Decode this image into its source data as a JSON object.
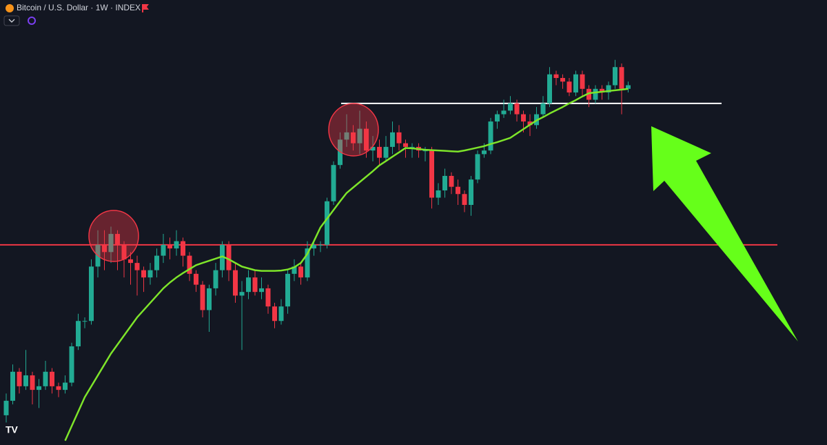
{
  "chart_data": {
    "type": "candlestick",
    "title": "Bitcoin / U.S. Dollar · 1W · INDEX",
    "up_color": "#22ab94",
    "down_color": "#f23645",
    "ylim": [
      13800,
      136500
    ],
    "open": [
      22000,
      26000,
      34000,
      30000,
      33000,
      29000,
      30000,
      34000,
      30000,
      29000,
      31000,
      41000,
      48000,
      48000,
      63000,
      69000,
      67000,
      72000,
      69000,
      65000,
      64000,
      62000,
      60000,
      62000,
      66000,
      69000,
      68000,
      70000,
      66000,
      61000,
      58000,
      51000,
      57000,
      62000,
      69000,
      62000,
      55000,
      56000,
      60000,
      56000,
      57000,
      52000,
      48000,
      52000,
      61000,
      63000,
      60000,
      68000,
      69000,
      69000,
      81000,
      91000,
      98000,
      100000,
      97000,
      101000,
      95000,
      96000,
      93000,
      96000,
      100000,
      97000,
      96000,
      96000,
      95000,
      95000,
      82000,
      84000,
      88000,
      85000,
      83000,
      80000,
      87000,
      94000,
      95000,
      103000,
      105000,
      106000,
      108000,
      105000,
      103000,
      102000,
      105000,
      108000,
      116000,
      115000,
      114000,
      111000,
      116000,
      112000,
      109000,
      112000,
      111000,
      113000,
      118000,
      112000
    ],
    "high": [
      28000,
      36000,
      35000,
      40000,
      34000,
      32000,
      37000,
      35000,
      31000,
      33000,
      42000,
      50000,
      49000,
      65000,
      73000,
      73000,
      74000,
      73000,
      70000,
      67000,
      66000,
      63000,
      64000,
      68000,
      72000,
      71000,
      73000,
      71000,
      67000,
      62000,
      59000,
      58000,
      64000,
      70000,
      70000,
      64000,
      59000,
      62000,
      62000,
      60000,
      58000,
      53000,
      54000,
      62000,
      65000,
      64000,
      70000,
      70000,
      70000,
      82000,
      92000,
      100000,
      105000,
      102000,
      106000,
      103000,
      99000,
      98000,
      99000,
      103000,
      102000,
      98000,
      97000,
      97000,
      96000,
      96000,
      86000,
      90000,
      89000,
      87000,
      84000,
      88000,
      95000,
      97000,
      104000,
      106000,
      109000,
      110000,
      109000,
      106000,
      105000,
      107000,
      110000,
      118000,
      117000,
      116000,
      115000,
      117000,
      117000,
      113000,
      113000,
      113000,
      114000,
      120000,
      119000,
      114000
    ],
    "low": [
      20000,
      25000,
      28000,
      29000,
      25000,
      24000,
      29000,
      28000,
      27000,
      28000,
      30000,
      40000,
      46000,
      47000,
      60000,
      62000,
      64000,
      62000,
      60000,
      58000,
      55000,
      56000,
      58000,
      60000,
      64000,
      65000,
      66000,
      63000,
      59000,
      56000,
      49000,
      45000,
      55000,
      60000,
      59000,
      53000,
      40000,
      54000,
      55000,
      54000,
      50000,
      46000,
      47000,
      50000,
      59000,
      58000,
      59000,
      66000,
      67000,
      68000,
      80000,
      90000,
      96000,
      95000,
      94000,
      93000,
      92000,
      91000,
      92000,
      94000,
      95000,
      93000,
      93000,
      93000,
      92000,
      79000,
      80000,
      82000,
      83000,
      80000,
      78000,
      77000,
      86000,
      93000,
      94000,
      101000,
      104000,
      105000,
      103000,
      100000,
      99000,
      101000,
      104000,
      107000,
      113000,
      112000,
      110000,
      110000,
      110000,
      107000,
      108000,
      109000,
      109000,
      112000,
      105000,
      111000
    ],
    "close": [
      26000,
      34000,
      30000,
      33000,
      29000,
      30000,
      34000,
      30000,
      29000,
      31000,
      41000,
      48000,
      48000,
      63000,
      69000,
      67000,
      72000,
      69000,
      65000,
      64000,
      62000,
      60000,
      62000,
      66000,
      69000,
      68000,
      70000,
      66000,
      61000,
      58000,
      51000,
      57000,
      62000,
      69000,
      62000,
      55000,
      56000,
      60000,
      56000,
      57000,
      52000,
      48000,
      52000,
      61000,
      63000,
      60000,
      68000,
      69000,
      69000,
      81000,
      91000,
      98000,
      100000,
      97000,
      101000,
      95000,
      96000,
      93000,
      96000,
      100000,
      97000,
      96000,
      96000,
      95000,
      95000,
      82000,
      84000,
      88000,
      85000,
      83000,
      80000,
      87000,
      94000,
      95000,
      103000,
      105000,
      106000,
      108000,
      105000,
      103000,
      102000,
      105000,
      108000,
      116000,
      115000,
      114000,
      111000,
      116000,
      112000,
      109000,
      112000,
      111000,
      113000,
      118000,
      112000,
      113000
    ],
    "series": [
      {
        "color": "#7ee52a",
        "values": [
          null,
          null,
          null,
          null,
          null,
          null,
          null,
          null,
          null,
          15000,
          19000,
          23000,
          27000,
          30000,
          33000,
          36000,
          39000,
          41500,
          44000,
          46500,
          49000,
          51000,
          53000,
          55000,
          57000,
          58600,
          60000,
          61200,
          62300,
          63400,
          64000,
          64600,
          65200,
          65800,
          65000,
          64000,
          63000,
          62500,
          62000,
          61800,
          61800,
          61800,
          61900,
          62200,
          62800,
          64000,
          66500,
          70000,
          73800,
          76200,
          78600,
          81000,
          83300,
          84800,
          86300,
          87800,
          89300,
          90900,
          92100,
          93300,
          94500,
          95700,
          95600,
          95400,
          95200,
          95100,
          95000,
          94900,
          94800,
          94700,
          95000,
          95400,
          95800,
          96200,
          96800,
          97300,
          97900,
          98500,
          99700,
          100900,
          102100,
          103300,
          104200,
          105200,
          106100,
          107000,
          108000,
          108900,
          109900,
          110800,
          111000,
          111200,
          111400,
          111600,
          111800,
          112000
        ]
      }
    ],
    "levels": [
      {
        "value": 69000,
        "color": "#f23645"
      },
      {
        "value": 108000,
        "color": "#ffffff"
      }
    ]
  }
}
